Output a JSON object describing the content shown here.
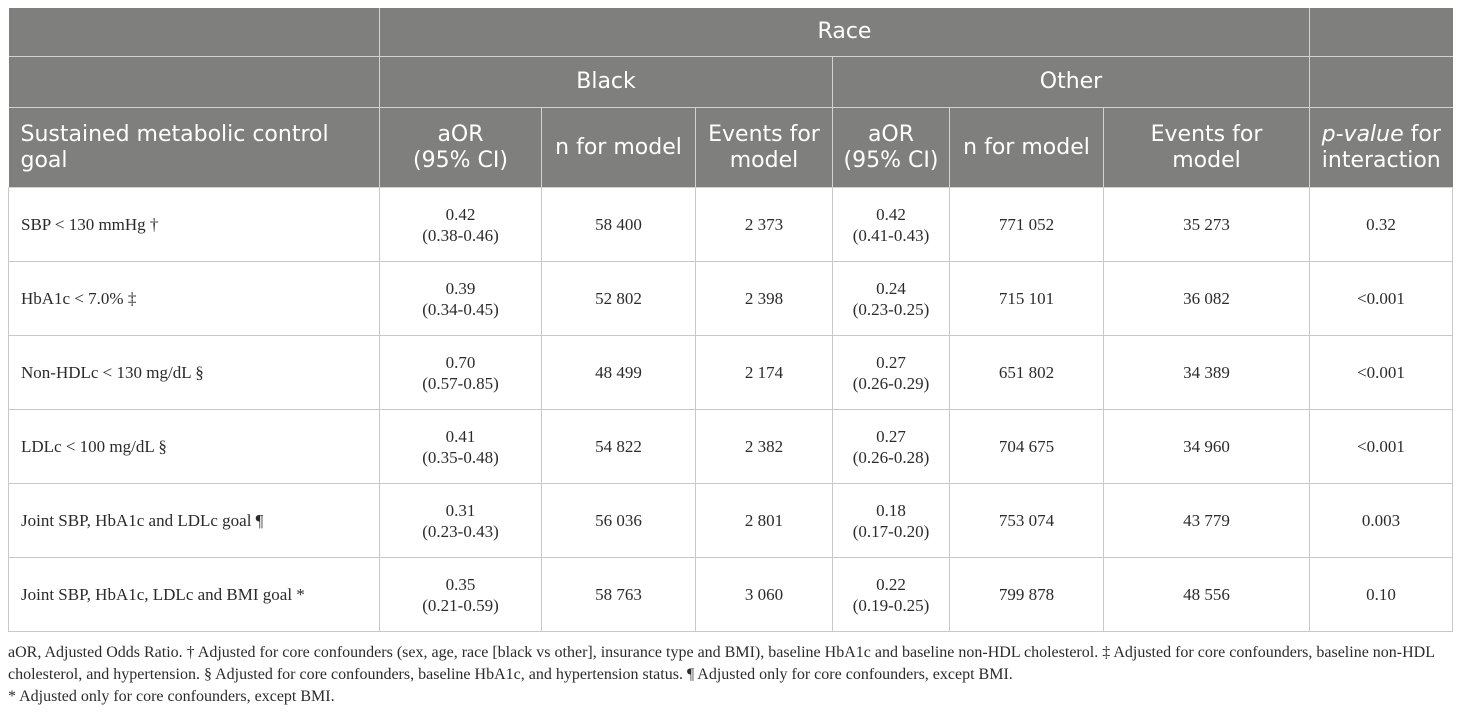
{
  "header": {
    "race": "Race",
    "black": "Black",
    "other": "Other",
    "goal_col": "Sustained metabolic control goal",
    "aor": "aOR",
    "ci": "(95% CI)",
    "n_model": "n for model",
    "events_line1": "Events for",
    "events_line2": "model",
    "pvalue_italic": "p-value",
    "pvalue_rest": " for",
    "interaction": "interaction"
  },
  "rows": [
    {
      "goal": "SBP < 130 mmHg †",
      "b_aor": "0.42",
      "b_ci": "(0.38-0.46)",
      "b_n": "58 400",
      "b_events": "2 373",
      "o_aor": "0.42",
      "o_ci": "(0.41-0.43)",
      "o_n": "771 052",
      "o_events": "35 273",
      "p": "0.32"
    },
    {
      "goal": "HbA1c < 7.0% ‡",
      "b_aor": "0.39",
      "b_ci": "(0.34-0.45)",
      "b_n": "52 802",
      "b_events": "2 398",
      "o_aor": "0.24",
      "o_ci": "(0.23-0.25)",
      "o_n": "715 101",
      "o_events": "36 082",
      "p": "<0.001"
    },
    {
      "goal": "Non-HDLc < 130 mg/dL §",
      "b_aor": "0.70",
      "b_ci": "(0.57-0.85)",
      "b_n": "48 499",
      "b_events": "2 174",
      "o_aor": "0.27",
      "o_ci": "(0.26-0.29)",
      "o_n": "651 802",
      "o_events": "34 389",
      "p": "<0.001"
    },
    {
      "goal": "LDLc < 100 mg/dL §",
      "b_aor": "0.41",
      "b_ci": "(0.35-0.48)",
      "b_n": "54 822",
      "b_events": "2 382",
      "o_aor": "0.27",
      "o_ci": "(0.26-0.28)",
      "o_n": "704 675",
      "o_events": "34 960",
      "p": "<0.001"
    },
    {
      "goal": "Joint SBP, HbA1c and LDLc goal ¶",
      "b_aor": "0.31",
      "b_ci": "(0.23-0.43)",
      "b_n": "56 036",
      "b_events": "2 801",
      "o_aor": "0.18",
      "o_ci": "(0.17-0.20)",
      "o_n": "753 074",
      "o_events": "43 779",
      "p": "0.003"
    },
    {
      "goal": "Joint SBP, HbA1c, LDLc and BMI goal *",
      "b_aor": "0.35",
      "b_ci": "(0.21-0.59)",
      "b_n": "58 763",
      "b_events": "3 060",
      "o_aor": "0.22",
      "o_ci": "(0.19-0.25)",
      "o_n": "799 878",
      "o_events": "48 556",
      "p": "0.10"
    }
  ],
  "footnote": {
    "line1": "aOR, Adjusted Odds Ratio. † Adjusted for core confounders (sex, age, race [black vs other], insurance type and BMI), baseline HbA1c and baseline non-HDL cholesterol. ‡ Adjusted for core confounders, baseline non-HDL cholesterol, and hypertension. § Adjusted for core confounders, baseline HbA1c, and hypertension status. ¶ Adjusted only for core confounders, except BMI.",
    "line2": "* Adjusted only for core confounders, except BMI."
  }
}
